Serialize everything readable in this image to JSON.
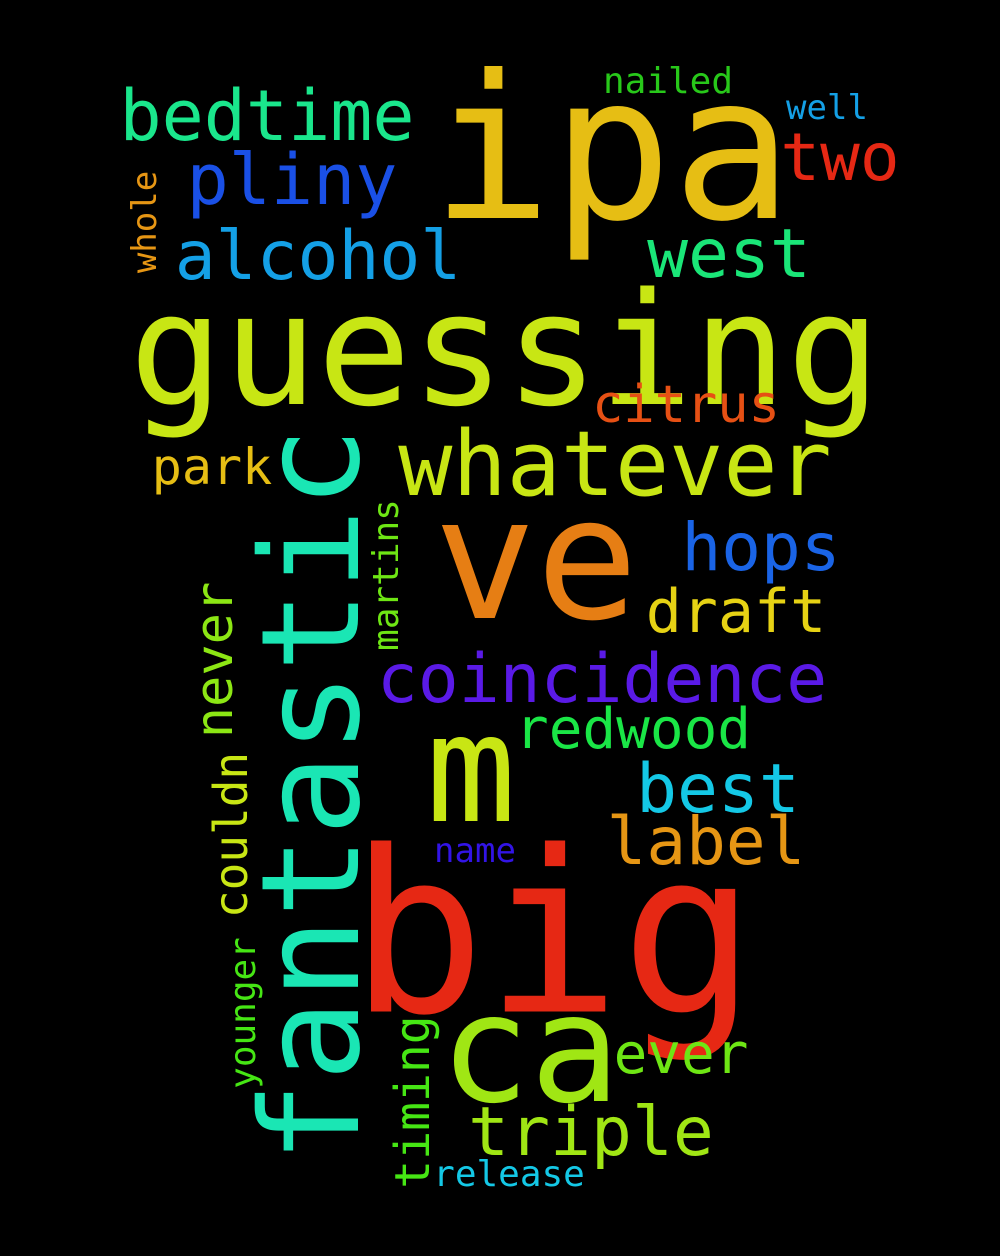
{
  "background": "#000000",
  "words": {
    "ipa": {
      "text": "ipa",
      "color": "#E6BE14"
    },
    "guessing": {
      "text": "guessing",
      "color": "#C8E614"
    },
    "fantastic": {
      "text": "fantastic",
      "color": "#1AE6B4"
    },
    "ve": {
      "text": "ve",
      "color": "#E67E14"
    },
    "big": {
      "text": "big",
      "color": "#E62814"
    },
    "m": {
      "text": "m",
      "color": "#C8E614"
    },
    "ca": {
      "text": "ca",
      "color": "#A0E614"
    },
    "whatever": {
      "text": "whatever",
      "color": "#C8E614"
    },
    "bedtime": {
      "text": "bedtime",
      "color": "#1AE68C"
    },
    "pliny": {
      "text": "pliny",
      "color": "#1A50E6"
    },
    "two": {
      "text": "two",
      "color": "#E62814"
    },
    "alcohol": {
      "text": "alcohol",
      "color": "#14A0E6"
    },
    "west": {
      "text": "west",
      "color": "#1AE678"
    },
    "citrus": {
      "text": "citrus",
      "color": "#E65014"
    },
    "park": {
      "text": "park",
      "color": "#E6BE14"
    },
    "hops": {
      "text": "hops",
      "color": "#1A64E6"
    },
    "draft": {
      "text": "draft",
      "color": "#E6D214"
    },
    "coincidence": {
      "text": "coincidence",
      "color": "#5A1AE6"
    },
    "redwood": {
      "text": "redwood",
      "color": "#1AE646"
    },
    "best": {
      "text": "best",
      "color": "#14C8E6"
    },
    "label": {
      "text": "label",
      "color": "#E69614"
    },
    "ever": {
      "text": "ever",
      "color": "#6EE614"
    },
    "triple": {
      "text": "triple",
      "color": "#A0E614"
    },
    "nailed": {
      "text": "nailed",
      "color": "#28C81A"
    },
    "well": {
      "text": "well",
      "color": "#14A0E6"
    },
    "whole": {
      "text": "whole",
      "color": "#E69614"
    },
    "never": {
      "text": "never",
      "color": "#8CE614"
    },
    "martins": {
      "text": "martins",
      "color": "#6EE614"
    },
    "couldn": {
      "text": "couldn",
      "color": "#C8E614"
    },
    "name": {
      "text": "name",
      "color": "#3214E6"
    },
    "younger": {
      "text": "younger",
      "color": "#46E614"
    },
    "timing": {
      "text": "timing",
      "color": "#46E614"
    },
    "release": {
      "text": "release",
      "color": "#14C8E6"
    }
  }
}
